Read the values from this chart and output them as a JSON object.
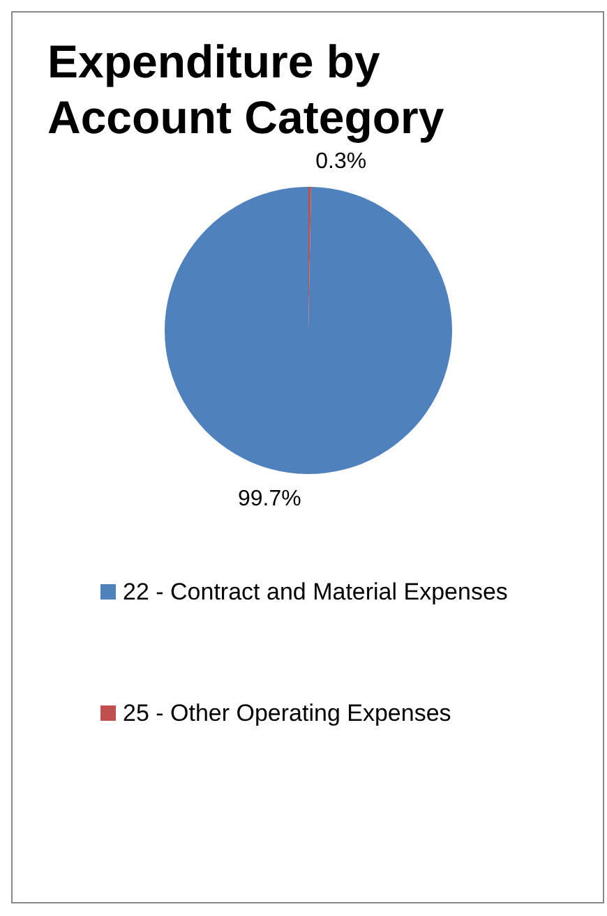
{
  "chart_data": {
    "type": "pie",
    "title": "Expenditure by Account Category",
    "categories": [
      "22 - Contract and Material Expenses",
      "25 - Other Operating Expenses"
    ],
    "values": [
      99.7,
      0.3
    ],
    "colors": [
      "#4f81bd",
      "#c0504d"
    ],
    "value_labels": [
      "99.7%",
      "0.3%"
    ],
    "legend": "bottom"
  }
}
